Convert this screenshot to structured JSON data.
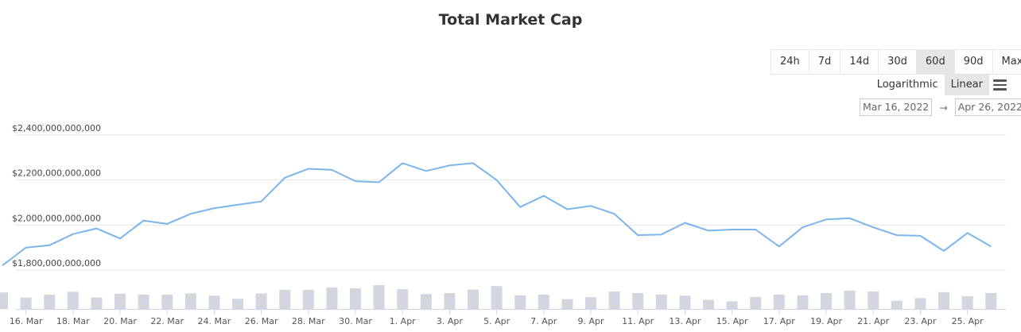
{
  "title": "Total Market Cap",
  "range_buttons": [
    "24h",
    "7d",
    "14d",
    "30d",
    "60d",
    "90d",
    "Max"
  ],
  "range_active": "60d",
  "scale": {
    "logarithmic": "Logarithmic",
    "linear": "Linear",
    "active": "Linear"
  },
  "date_range": {
    "from": "Mar 16, 2022",
    "arrow": "→",
    "to": "Apr 26, 2022"
  },
  "colors": {
    "line": "#7cb5ec",
    "bar": "#d4d6df",
    "grid": "#e6e6e6"
  },
  "chart_data": {
    "type": "line",
    "title": "Total Market Cap",
    "ylim": [
      1750000000000,
      2420000000000
    ],
    "yticks": [
      1800000000000,
      2000000000000,
      2200000000000,
      2400000000000
    ],
    "ytick_labels": [
      "$1,800,000,000,000",
      "$2,000,000,000,000",
      "$2,200,000,000,000",
      "$2,400,000,000,000"
    ],
    "xtick_labels": [
      "16. Mar",
      "18. Mar",
      "20. Mar",
      "22. Mar",
      "24. Mar",
      "26. Mar",
      "28. Mar",
      "30. Mar",
      "1. Apr",
      "3. Apr",
      "5. Apr",
      "7. Apr",
      "9. Apr",
      "11. Apr",
      "13. Apr",
      "15. Apr",
      "17. Apr",
      "19. Apr",
      "21. Apr",
      "23. Apr",
      "25. Apr"
    ],
    "x": [
      "Mar 15",
      "Mar 16",
      "Mar 17",
      "Mar 18",
      "Mar 19",
      "Mar 20",
      "Mar 21",
      "Mar 22",
      "Mar 23",
      "Mar 24",
      "Mar 25",
      "Mar 26",
      "Mar 27",
      "Mar 28",
      "Mar 29",
      "Mar 30",
      "Mar 31",
      "Apr 1",
      "Apr 2",
      "Apr 3",
      "Apr 4",
      "Apr 5",
      "Apr 6",
      "Apr 7",
      "Apr 8",
      "Apr 9",
      "Apr 10",
      "Apr 11",
      "Apr 12",
      "Apr 13",
      "Apr 14",
      "Apr 15",
      "Apr 16",
      "Apr 17",
      "Apr 18",
      "Apr 19",
      "Apr 20",
      "Apr 21",
      "Apr 22",
      "Apr 23",
      "Apr 24",
      "Apr 25",
      "Apr 26"
    ],
    "series": [
      {
        "values": [
          1820000000000,
          1900000000000,
          1910000000000,
          1960000000000,
          1985000000000,
          1940000000000,
          2020000000000,
          2005000000000,
          2050000000000,
          2075000000000,
          2090000000000,
          2105000000000,
          2210000000000,
          2250000000000,
          2245000000000,
          2195000000000,
          2190000000000,
          2275000000000,
          2240000000000,
          2265000000000,
          2275000000000,
          2200000000000,
          2080000000000,
          2130000000000,
          2070000000000,
          2085000000000,
          2050000000000,
          1955000000000,
          1958000000000,
          2010000000000,
          1975000000000,
          1980000000000,
          1980000000000,
          1905000000000,
          1990000000000,
          2025000000000,
          2030000000000,
          1990000000000,
          1955000000000,
          1952000000000,
          1885000000000,
          1965000000000,
          1905000000000
        ]
      }
    ],
    "volume": [
      0.52,
      0.36,
      0.45,
      0.54,
      0.36,
      0.48,
      0.45,
      0.45,
      0.49,
      0.42,
      0.32,
      0.49,
      0.6,
      0.6,
      0.68,
      0.65,
      0.75,
      0.62,
      0.47,
      0.5,
      0.61,
      0.72,
      0.43,
      0.45,
      0.31,
      0.37,
      0.55,
      0.5,
      0.45,
      0.42,
      0.29,
      0.24,
      0.38,
      0.45,
      0.43,
      0.5,
      0.58,
      0.55,
      0.26,
      0.34,
      0.53,
      0.4,
      0.5
    ],
    "grid": true,
    "legend": "none"
  }
}
